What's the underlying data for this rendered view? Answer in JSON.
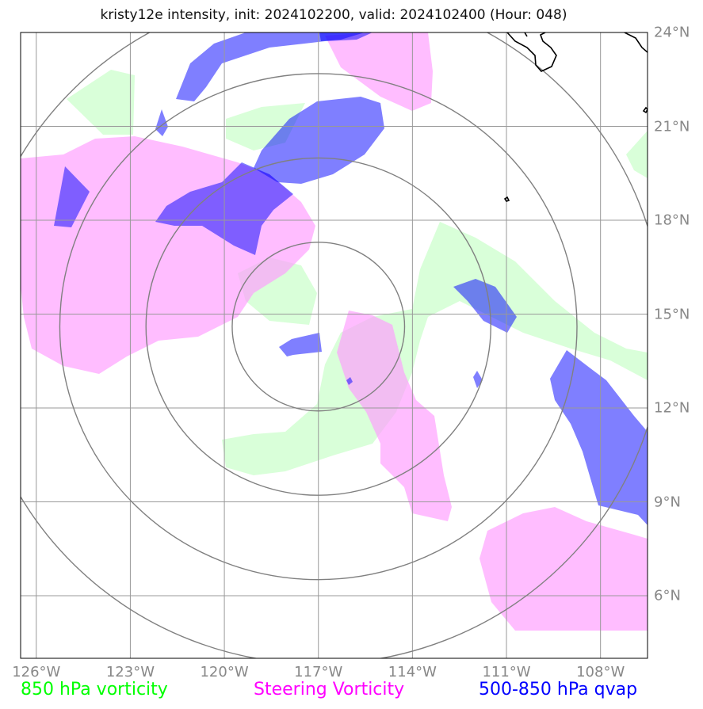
{
  "title": "kristy12e intensity, init: 2024102200, valid: 2024102400 (Hour: 048)",
  "map": {
    "lon_range": [
      -126.5,
      -106.5
    ],
    "lat_range": [
      4,
      24
    ],
    "lon_ticks": [
      -126,
      -123,
      -120,
      -117,
      -114,
      -111,
      -108
    ],
    "lat_ticks": [
      24,
      21,
      18,
      15,
      12,
      9,
      6
    ],
    "lon_labels": [
      "126°W",
      "123°W",
      "120°W",
      "117°W",
      "114°W",
      "111°W",
      "108°W"
    ],
    "lat_labels": [
      "24°N",
      "21°N",
      "18°N",
      "15°N",
      "12°N",
      "9°N",
      "6°N"
    ],
    "storm_center": {
      "lon": -117,
      "lat": 14.6
    },
    "range_rings_deg": [
      2.75,
      5.5,
      8.25,
      11
    ],
    "colors": {
      "vorticity_850": "#ccffcc",
      "steering_vorticity": "#ff99ff",
      "qvap": "#0000ff",
      "grid": "#999999",
      "rings": "#808080",
      "coast": "#000000"
    }
  },
  "legend": {
    "vort850": {
      "label": "850 hPa vorticity",
      "color": "#00ff00"
    },
    "steering": {
      "label": "Steering Vorticity",
      "color": "#ff00ff"
    },
    "qvap": {
      "label": "500-850 hPa qvap",
      "color": "#0000ff"
    }
  }
}
